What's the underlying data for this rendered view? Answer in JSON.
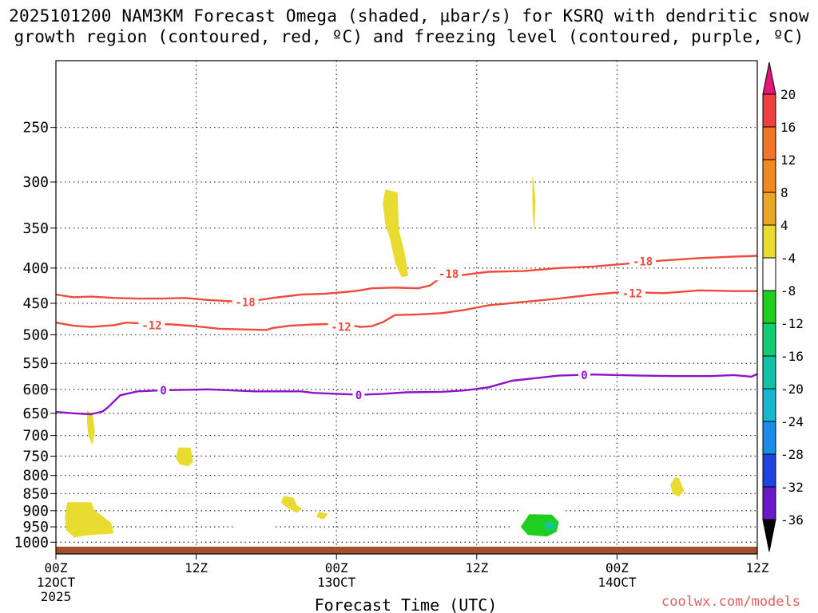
{
  "title_line1": "2025101200 NAM3KM Forecast Omega (shaded, μbar/s) for KSRQ with dendritic snow",
  "title_line2": "growth region (contoured, red, ºC) and freezing level (contoured, purple, ºC)",
  "credit": "coolwx.com/models",
  "chart_data": {
    "type": "heatmap",
    "title": "2025101200 NAM3KM Forecast Omega (shaded, μbar/s) for KSRQ with dendritic snow growth region (contoured, red, ºC) and freezing level (contoured, purple, ºC)",
    "xlabel": "Forecast Time (UTC)",
    "ylabel": "",
    "x_unit": "hours since 2025-10-12 00Z",
    "xlim": [
      0,
      60
    ],
    "ylim": [
      1040,
      200
    ],
    "y_scale": "log-pressure (hPa)",
    "grid": true,
    "x_ticks": [
      {
        "x": 0,
        "lines": [
          "00Z",
          "12OCT",
          "2025"
        ]
      },
      {
        "x": 12,
        "lines": [
          "12Z"
        ]
      },
      {
        "x": 24,
        "lines": [
          "00Z",
          "13OCT"
        ]
      },
      {
        "x": 36,
        "lines": [
          "12Z"
        ]
      },
      {
        "x": 48,
        "lines": [
          "00Z",
          "14OCT"
        ]
      },
      {
        "x": 60,
        "lines": [
          "12Z"
        ]
      }
    ],
    "y_ticks": [
      250,
      300,
      350,
      400,
      450,
      500,
      550,
      600,
      650,
      700,
      750,
      800,
      850,
      900,
      950,
      1000
    ],
    "surface_pressure": 1015,
    "contours": [
      {
        "name": "-18",
        "color": "#ef4b3c",
        "label_at": [
          [
            16.2,
            448
          ],
          [
            33.6,
            408
          ],
          [
            50.2,
            391
          ]
        ],
        "points": [
          [
            0,
            437
          ],
          [
            1.5,
            441
          ],
          [
            3,
            440
          ],
          [
            5,
            442
          ],
          [
            7,
            443
          ],
          [
            9,
            443
          ],
          [
            11,
            442
          ],
          [
            13,
            445
          ],
          [
            15,
            447
          ],
          [
            17,
            446
          ],
          [
            19,
            441
          ],
          [
            21,
            437
          ],
          [
            23,
            436
          ],
          [
            25,
            433
          ],
          [
            26,
            431
          ],
          [
            27,
            428
          ],
          [
            29,
            427
          ],
          [
            31,
            428
          ],
          [
            32,
            424
          ],
          [
            33,
            412
          ],
          [
            35,
            409
          ],
          [
            37,
            405
          ],
          [
            40,
            404
          ],
          [
            43,
            400
          ],
          [
            46,
            398
          ],
          [
            49,
            394
          ],
          [
            52,
            390
          ],
          [
            55,
            387
          ],
          [
            58,
            385
          ],
          [
            60,
            384
          ]
        ]
      },
      {
        "name": "-12",
        "color": "#ef4b3c",
        "label_at": [
          [
            8.2,
            484
          ],
          [
            24.4,
            487
          ],
          [
            49.3,
            435
          ]
        ],
        "points": [
          [
            0,
            480
          ],
          [
            1.5,
            485
          ],
          [
            3,
            487
          ],
          [
            5,
            484
          ],
          [
            6,
            480
          ],
          [
            8,
            482
          ],
          [
            10,
            483
          ],
          [
            12,
            486
          ],
          [
            14,
            490
          ],
          [
            16,
            491
          ],
          [
            18,
            492
          ],
          [
            18.5,
            489
          ],
          [
            20,
            485
          ],
          [
            22,
            483
          ],
          [
            24,
            482
          ],
          [
            25,
            483
          ],
          [
            26,
            487
          ],
          [
            27,
            486
          ],
          [
            28,
            479
          ],
          [
            29,
            468
          ],
          [
            31,
            467
          ],
          [
            33,
            465
          ],
          [
            35,
            460
          ],
          [
            37,
            453
          ],
          [
            40,
            448
          ],
          [
            43,
            443
          ],
          [
            46,
            437
          ],
          [
            48,
            434
          ],
          [
            50,
            434
          ],
          [
            52,
            435
          ],
          [
            55,
            431
          ],
          [
            58,
            432
          ],
          [
            60,
            432
          ]
        ]
      },
      {
        "name": "0",
        "color": "#9012c8",
        "label_at": [
          [
            9.2,
            602
          ],
          [
            25.9,
            612
          ],
          [
            45.2,
            572
          ]
        ],
        "points": [
          [
            0,
            647
          ],
          [
            1.5,
            650
          ],
          [
            3,
            652
          ],
          [
            4,
            646
          ],
          [
            4.5,
            636
          ],
          [
            5.5,
            612
          ],
          [
            7,
            604
          ],
          [
            9,
            602
          ],
          [
            11,
            601
          ],
          [
            13,
            600
          ],
          [
            15,
            602
          ],
          [
            17,
            604
          ],
          [
            19,
            604
          ],
          [
            21,
            604
          ],
          [
            22,
            607
          ],
          [
            24,
            609
          ],
          [
            26,
            611
          ],
          [
            28,
            609
          ],
          [
            30,
            606
          ],
          [
            33,
            605
          ],
          [
            35,
            602
          ],
          [
            37,
            596
          ],
          [
            39,
            583
          ],
          [
            41,
            578
          ],
          [
            43,
            573
          ],
          [
            46,
            571
          ],
          [
            50,
            573
          ],
          [
            53,
            574
          ],
          [
            56,
            574
          ],
          [
            58,
            572
          ],
          [
            59.5,
            575
          ],
          [
            60,
            570
          ]
        ]
      }
    ],
    "omega_regions": [
      {
        "value": 4,
        "points": [
          [
            1,
            876
          ],
          [
            3,
            876
          ],
          [
            3.3,
            900
          ],
          [
            4.7,
            938
          ],
          [
            4.9,
            970
          ],
          [
            4.2,
            972
          ],
          [
            2.6,
            976
          ],
          [
            1.6,
            983
          ],
          [
            0.9,
            960
          ],
          [
            0.8,
            920
          ]
        ]
      },
      {
        "value": 4,
        "points": [
          [
            2.7,
            645
          ],
          [
            3.1,
            652
          ],
          [
            3.3,
            690
          ],
          [
            3.1,
            720
          ],
          [
            2.8,
            700
          ],
          [
            2.7,
            670
          ]
        ]
      },
      {
        "value": 4,
        "points": [
          [
            10.5,
            730
          ],
          [
            11.5,
            730
          ],
          [
            11.7,
            765
          ],
          [
            11.3,
            775
          ],
          [
            10.6,
            770
          ],
          [
            10.3,
            755
          ]
        ]
      },
      {
        "value": 4,
        "points": [
          [
            19.5,
            858
          ],
          [
            20.3,
            863
          ],
          [
            20.6,
            885
          ],
          [
            21,
            895
          ],
          [
            20.6,
            905
          ],
          [
            19.8,
            890
          ],
          [
            19.3,
            875
          ]
        ]
      },
      {
        "value": 4,
        "points": [
          [
            22.5,
            905
          ],
          [
            23.2,
            910
          ],
          [
            22.9,
            925
          ],
          [
            22.3,
            918
          ]
        ]
      },
      {
        "value": 4,
        "points": [
          [
            28.2,
            308
          ],
          [
            29.2,
            311
          ],
          [
            29.3,
            352
          ],
          [
            29.8,
            380
          ],
          [
            30.1,
            410
          ],
          [
            29.6,
            412
          ],
          [
            29.1,
            395
          ],
          [
            28.6,
            362
          ],
          [
            28.2,
            345
          ],
          [
            28,
            322
          ]
        ]
      },
      {
        "value": 4,
        "points": [
          [
            40.8,
            295
          ],
          [
            41,
            318
          ],
          [
            40.9,
            349
          ],
          [
            40.8,
            325
          ]
        ]
      },
      {
        "value": 4,
        "points": [
          [
            53,
            805
          ],
          [
            53.3,
            810
          ],
          [
            53.7,
            842
          ],
          [
            53.3,
            857
          ],
          [
            52.8,
            850
          ],
          [
            52.6,
            825
          ]
        ]
      },
      {
        "value": -4,
        "points": [
          [
            16.2,
            923
          ],
          [
            17.7,
            923
          ],
          [
            18.5,
            945
          ],
          [
            18.6,
            965
          ],
          [
            17.8,
            983
          ],
          [
            16.3,
            985
          ],
          [
            15.3,
            965
          ],
          [
            15.2,
            943
          ]
        ]
      },
      {
        "value": -4,
        "points": [
          [
            52.6,
            660
          ],
          [
            52.8,
            670
          ],
          [
            52.8,
            697
          ],
          [
            52.6,
            700
          ],
          [
            52.5,
            678
          ]
        ]
      },
      {
        "value": -4,
        "points": [
          [
            39.8,
            892
          ],
          [
            42.5,
            884
          ],
          [
            43.4,
            900
          ],
          [
            44,
            938
          ],
          [
            43.8,
            970
          ],
          [
            43.3,
            990
          ],
          [
            41.6,
            998
          ],
          [
            40,
            992
          ],
          [
            39.2,
            970
          ],
          [
            39,
            935
          ]
        ]
      },
      {
        "value": -8,
        "points": [
          [
            40.5,
            912
          ],
          [
            42.4,
            913
          ],
          [
            43,
            935
          ],
          [
            42.8,
            965
          ],
          [
            42,
            980
          ],
          [
            40.4,
            975
          ],
          [
            39.8,
            950
          ]
        ]
      },
      {
        "value": -12,
        "points": [
          [
            42.2,
            930
          ],
          [
            42.8,
            945
          ],
          [
            42.5,
            960
          ],
          [
            41.9,
            960
          ],
          [
            41.7,
            945
          ]
        ]
      },
      {
        "value": -16,
        "points": [
          [
            42.3,
            940
          ],
          [
            42.6,
            948
          ],
          [
            42.3,
            955
          ],
          [
            42,
            948
          ]
        ]
      }
    ],
    "colorbar": {
      "levels": [
        20,
        16,
        12,
        8,
        4,
        -4,
        -8,
        -12,
        -16,
        -20,
        -24,
        -28,
        -32,
        -36
      ],
      "bands": [
        {
          "color": "#e5157a"
        },
        {
          "color": "#ef4040"
        },
        {
          "color": "#f1762c"
        },
        {
          "color": "#f08a22"
        },
        {
          "color": "#e9a526"
        },
        {
          "color": "#e9db30"
        },
        {
          "color": "#ffffff"
        },
        {
          "color": "#1fce1f"
        },
        {
          "color": "#12cc74"
        },
        {
          "color": "#10c3a6"
        },
        {
          "color": "#17b8cf"
        },
        {
          "color": "#1b8ce9"
        },
        {
          "color": "#1e44df"
        },
        {
          "color": "#6b18c7"
        },
        {
          "color": "#9a10ba"
        },
        {
          "color": "#a5a5a5"
        },
        {
          "color": "#000000"
        }
      ]
    },
    "ground_color": "#a1512e"
  }
}
